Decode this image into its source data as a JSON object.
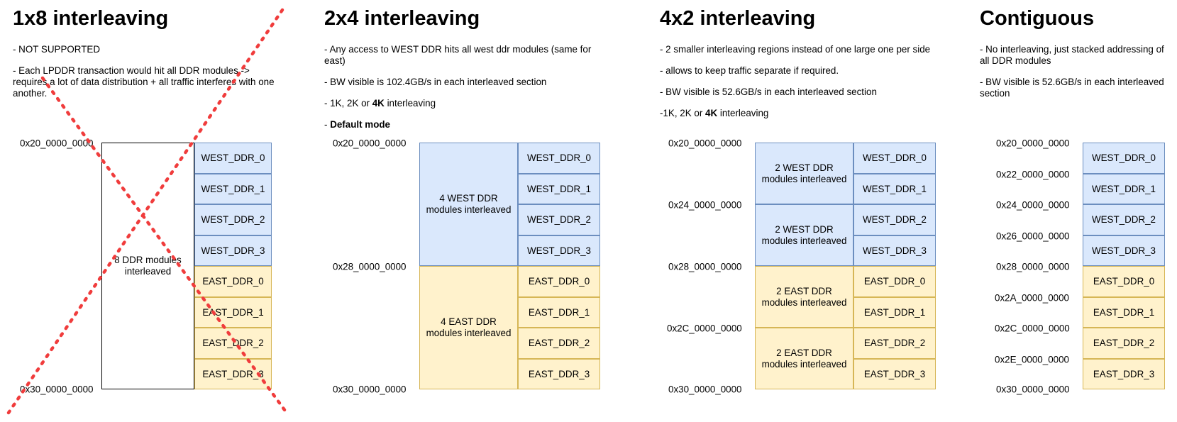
{
  "panels": [
    {
      "title": "1x8 interleaving",
      "notes": [
        "- NOT SUPPORTED",
        "- Each LPDDR transaction would hit all DDR modules -> requires a lot of data distribution + all traffic interferes with one another."
      ],
      "addresses": [
        "0x20_0000_0000",
        "0x30_0000_0000"
      ],
      "group_labels": [
        "8 DDR modules interleaved"
      ]
    },
    {
      "title": "2x4 interleaving",
      "notes": [
        "- Any access to WEST DDR hits all west ddr modules (same for east)",
        "- BW visible is 102.4GB/s in each interleaved section",
        {
          "prefix": "- 1K, 2K or ",
          "bold": "4K",
          "suffix": " interleaving"
        },
        {
          "prefix": "- ",
          "bold": "Default mode",
          "suffix": ""
        }
      ],
      "addresses": [
        "0x20_0000_0000",
        "0x28_0000_0000",
        "0x30_0000_0000"
      ],
      "group_labels": [
        "4 WEST DDR modules interleaved",
        "4 EAST DDR modules interleaved"
      ]
    },
    {
      "title": "4x2 interleaving",
      "notes": [
        "- 2 smaller interleaving regions instead of one large one per side",
        "- allows to keep traffic separate if required.",
        "- BW visible is 52.6GB/s in each interleaved section",
        {
          "prefix": "-1K, 2K or ",
          "bold": "4K",
          "suffix": " interleaving"
        }
      ],
      "addresses": [
        "0x20_0000_0000",
        "0x24_0000_0000",
        "0x28_0000_0000",
        "0x2C_0000_0000",
        "0x30_0000_0000"
      ],
      "group_labels": [
        "2 WEST DDR modules interleaved",
        "2 WEST DDR modules interleaved",
        "2 EAST DDR modules interleaved",
        "2 EAST DDR modules interleaved"
      ]
    },
    {
      "title": "Contiguous",
      "notes": [
        "- No interleaving, just stacked addressing of all DDR modules",
        "- BW visible is 52.6GB/s in each interleaved section"
      ],
      "addresses": [
        "0x20_0000_0000",
        "0x22_0000_0000",
        "0x24_0000_0000",
        "0x26_0000_0000",
        "0x28_0000_0000",
        "0x2A_0000_0000",
        "0x2C_0000_0000",
        "0x2E_0000_0000",
        "0x30_0000_0000"
      ],
      "group_labels": []
    }
  ],
  "modules": [
    "WEST_DDR_0",
    "WEST_DDR_1",
    "WEST_DDR_2",
    "WEST_DDR_3",
    "EAST_DDR_0",
    "EAST_DDR_1",
    "EAST_DDR_2",
    "EAST_DDR_3"
  ],
  "colors": {
    "west_fill": "#dae8fc",
    "west_border": "#6c8ebf",
    "east_fill": "#fff2cc",
    "east_border": "#d6b656",
    "cross": "#f03c3c"
  }
}
